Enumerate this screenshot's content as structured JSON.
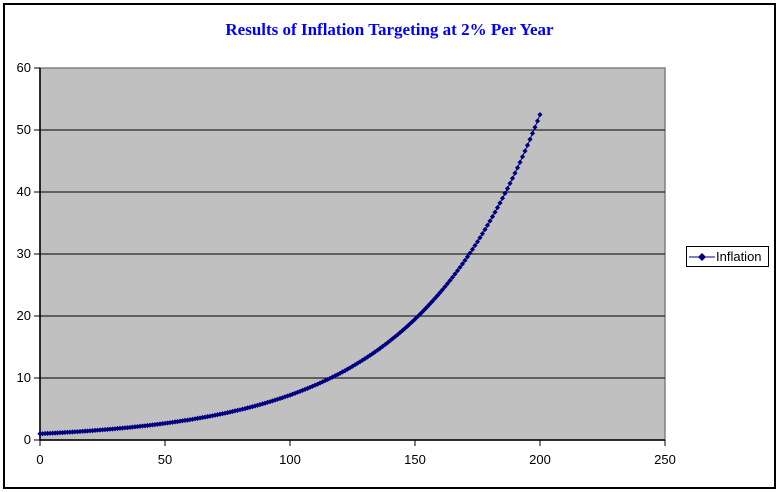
{
  "title": "Results of Inflation Targeting at 2% Per Year",
  "legend": {
    "label": "Inflation"
  },
  "colors": {
    "title": "#0000ff",
    "series": "#000080",
    "plot_bg": "#c0c0c0",
    "plot_border": "#808080",
    "gridline": "#000000",
    "axis": "#000000",
    "chart_border": "#000000",
    "background": "#ffffff",
    "tick_label": "#000000"
  },
  "chart_data": {
    "type": "line",
    "title": "Results of Inflation Targeting at 2% Per Year",
    "xlabel": "",
    "ylabel": "",
    "xlim": [
      0,
      250
    ],
    "ylim": [
      0,
      60
    ],
    "x_ticks": [
      "0",
      "50",
      "100",
      "150",
      "200",
      "250"
    ],
    "x_tick_values": [
      0,
      50,
      100,
      150,
      200,
      250
    ],
    "y_ticks": [
      "0",
      "10",
      "20",
      "30",
      "40",
      "50",
      "60"
    ],
    "y_tick_values": [
      0,
      10,
      20,
      30,
      40,
      50,
      60
    ],
    "grid": "horizontal",
    "legend_position": "right",
    "marker": "diamond",
    "series": [
      {
        "name": "Inflation",
        "description": "Price level under 2% per year inflation targeting: y = 1.02^x for x = 0..200 (yearly points)",
        "model": "compound_growth",
        "initial_value": 1.0,
        "growth_rate_per_year": 1.02,
        "x_start": 0,
        "x_end": 200,
        "x_step": 1,
        "sampled_points": [
          [
            0,
            1.0
          ],
          [
            10,
            1.22
          ],
          [
            20,
            1.49
          ],
          [
            30,
            1.81
          ],
          [
            40,
            2.21
          ],
          [
            50,
            2.69
          ],
          [
            60,
            3.28
          ],
          [
            70,
            4.0
          ],
          [
            80,
            4.88
          ],
          [
            90,
            5.94
          ],
          [
            100,
            7.24
          ],
          [
            110,
            8.83
          ],
          [
            120,
            10.77
          ],
          [
            130,
            13.12
          ],
          [
            140,
            16.0
          ],
          [
            150,
            19.5
          ],
          [
            160,
            23.77
          ],
          [
            170,
            28.98
          ],
          [
            180,
            35.32
          ],
          [
            190,
            43.06
          ],
          [
            200,
            52.48
          ]
        ]
      }
    ]
  }
}
